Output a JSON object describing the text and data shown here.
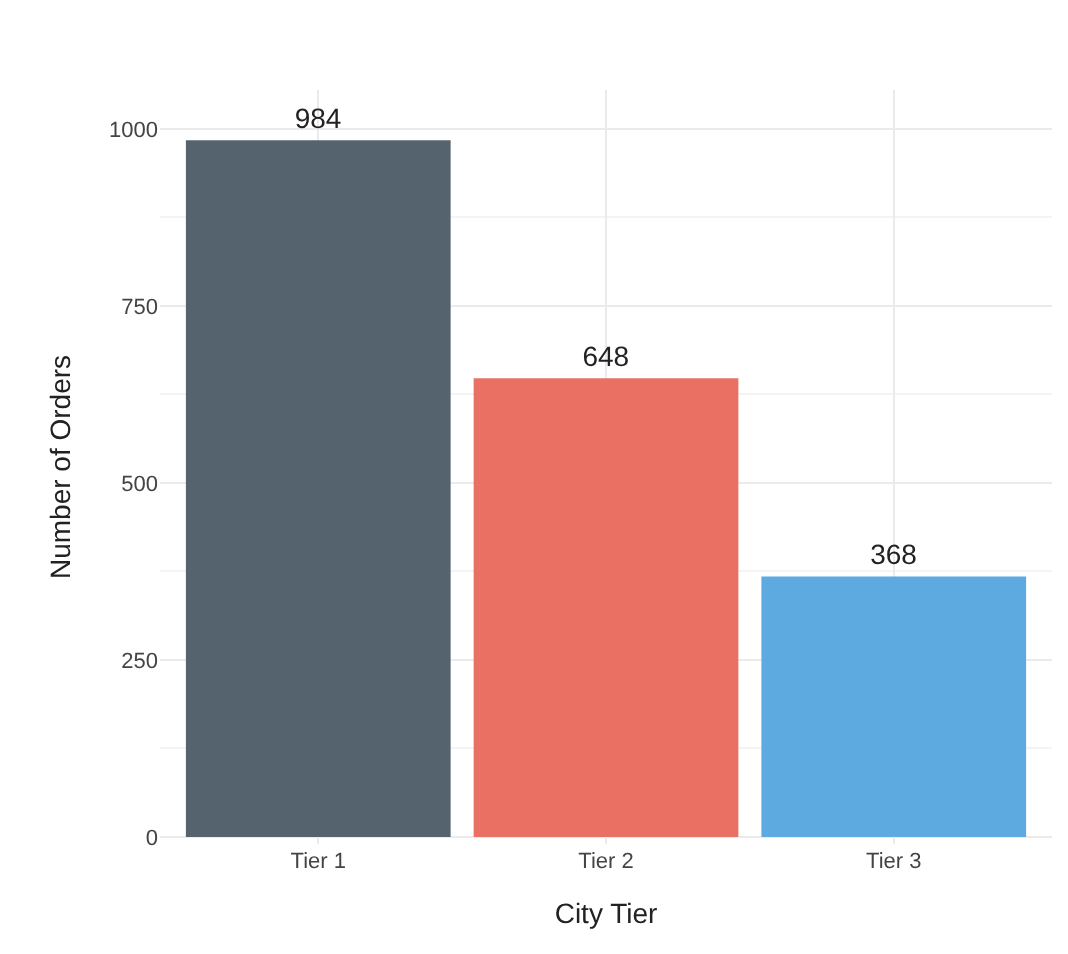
{
  "chart_data": {
    "type": "bar",
    "xlabel": "City Tier",
    "ylabel": "Number of Orders",
    "categories": [
      "Tier 1",
      "Tier 2",
      "Tier 3"
    ],
    "values": [
      984,
      648,
      368
    ],
    "colors": [
      "#55636f",
      "#eb7064",
      "#5daae0"
    ],
    "ylim": [
      -10,
      1055
    ],
    "yticks": [
      0,
      250,
      500,
      750,
      1000
    ],
    "grid": true,
    "data_labels": true
  }
}
